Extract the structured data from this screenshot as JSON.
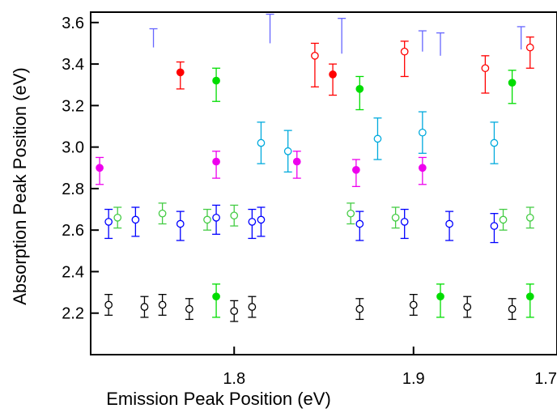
{
  "chart_data": {
    "type": "scatter",
    "xlabel": "Emission Peak Position (eV)",
    "ylabel": "Absorption Peak Position (eV)",
    "xlim": [
      1.72,
      1.98
    ],
    "ylim": [
      2.0,
      3.65
    ],
    "xticks": [
      1.8,
      1.9
    ],
    "xtick_labels": [
      "1.8",
      "1.9"
    ],
    "yticks": [
      2.2,
      2.4,
      2.6,
      2.8,
      3.0,
      3.2,
      3.4,
      3.6
    ],
    "ytick_labels": [
      "2.2",
      "2.4",
      "2.6",
      "2.8",
      "3.0",
      "3.2",
      "3.4",
      "3.6"
    ],
    "extra_label": "1.7",
    "grid": false,
    "series": [
      {
        "color": "#ff0000",
        "filled": true,
        "x": [
          1.77,
          1.855
        ],
        "y": [
          3.36,
          3.35
        ],
        "err_low": [
          0.08,
          0.1
        ],
        "err_high": [
          0.05,
          0.05
        ]
      },
      {
        "color": "#ff0000",
        "filled": false,
        "x": [
          1.845,
          1.895,
          1.94,
          1.965
        ],
        "y": [
          3.44,
          3.46,
          3.38,
          3.48
        ],
        "err_low": [
          0.15,
          0.12,
          0.12,
          0.1
        ],
        "err_high": [
          0.06,
          0.05,
          0.06,
          0.05
        ]
      },
      {
        "color": "#00dd00",
        "filled": true,
        "x": [
          1.79,
          1.87,
          1.955,
          1.79,
          1.915,
          1.965
        ],
        "y": [
          3.32,
          3.28,
          3.31,
          2.28,
          2.28,
          2.28
        ],
        "err_low": [
          0.1,
          0.1,
          0.1,
          0.1,
          0.1,
          0.1
        ],
        "err_high": [
          0.06,
          0.06,
          0.06,
          0.06,
          0.06,
          0.06
        ]
      },
      {
        "color": "#00aadd",
        "filled": false,
        "x": [
          1.815,
          1.83,
          1.88,
          1.905,
          1.945
        ],
        "y": [
          3.02,
          2.98,
          3.04,
          3.07,
          3.02
        ],
        "err_low": [
          0.1,
          0.1,
          0.1,
          0.1,
          0.1
        ],
        "err_high": [
          0.1,
          0.1,
          0.1,
          0.1,
          0.1
        ]
      },
      {
        "color": "#ee00ee",
        "filled": true,
        "x": [
          1.725,
          1.79,
          1.835,
          1.868,
          1.905
        ],
        "y": [
          2.9,
          2.93,
          2.93,
          2.89,
          2.9
        ],
        "err_low": [
          0.08,
          0.08,
          0.08,
          0.08,
          0.08
        ],
        "err_high": [
          0.05,
          0.05,
          0.05,
          0.05,
          0.05
        ]
      },
      {
        "color": "#44cc44",
        "filled": false,
        "x": [
          1.735,
          1.76,
          1.785,
          1.8,
          1.865,
          1.89,
          1.95,
          1.965
        ],
        "y": [
          2.66,
          2.68,
          2.65,
          2.67,
          2.68,
          2.66,
          2.65,
          2.66
        ],
        "err_low": [
          0.05,
          0.05,
          0.05,
          0.05,
          0.05,
          0.05,
          0.05,
          0.05
        ],
        "err_high": [
          0.05,
          0.05,
          0.05,
          0.05,
          0.05,
          0.05,
          0.05,
          0.05
        ]
      },
      {
        "color": "#0000ff",
        "filled": false,
        "x": [
          1.73,
          1.745,
          1.77,
          1.79,
          1.81,
          1.815,
          1.87,
          1.895,
          1.92,
          1.945
        ],
        "y": [
          2.64,
          2.65,
          2.63,
          2.66,
          2.64,
          2.65,
          2.63,
          2.64,
          2.63,
          2.62
        ],
        "err_low": [
          0.08,
          0.08,
          0.08,
          0.08,
          0.08,
          0.08,
          0.08,
          0.08,
          0.08,
          0.08
        ],
        "err_high": [
          0.06,
          0.06,
          0.06,
          0.06,
          0.06,
          0.06,
          0.06,
          0.06,
          0.06,
          0.06
        ]
      },
      {
        "color": "#000000",
        "filled": false,
        "x": [
          1.73,
          1.75,
          1.76,
          1.775,
          1.8,
          1.81,
          1.87,
          1.9,
          1.93,
          1.955
        ],
        "y": [
          2.24,
          2.23,
          2.24,
          2.22,
          2.21,
          2.23,
          2.22,
          2.24,
          2.23,
          2.22
        ],
        "err_low": [
          0.05,
          0.05,
          0.05,
          0.05,
          0.05,
          0.05,
          0.05,
          0.05,
          0.05,
          0.05
        ],
        "err_high": [
          0.05,
          0.05,
          0.05,
          0.05,
          0.05,
          0.05,
          0.05,
          0.05,
          0.05,
          0.05
        ]
      }
    ],
    "upper_bars": [
      {
        "color": "#6666ff",
        "x": [
          1.755,
          1.82,
          1.86,
          1.905,
          1.915,
          1.96
        ],
        "y_top": [
          3.57,
          3.64,
          3.62,
          3.56,
          3.55,
          3.58
        ],
        "y_bottom": [
          3.48,
          3.5,
          3.45,
          3.46,
          3.44,
          3.47
        ]
      }
    ]
  }
}
